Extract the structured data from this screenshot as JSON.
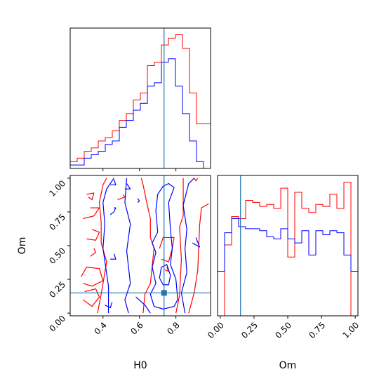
{
  "chart_data": {
    "type": "corner",
    "parameters": [
      "H0",
      "Om"
    ],
    "colors": {
      "series_a": "#ff0000",
      "series_b": "#0000ff",
      "truth": "#1f77b4"
    },
    "truth": {
      "H0": 0.735,
      "Om": 0.15
    },
    "axes": {
      "H0": {
        "label": "H0",
        "lim": [
          0.22,
          0.99
        ],
        "ticks": [
          0.4,
          0.6,
          0.8
        ],
        "tick_labels": [
          "0.4",
          "0.6",
          "0.8"
        ]
      },
      "Om": {
        "label": "Om",
        "lim": [
          -0.02,
          1.02
        ],
        "ticks": [
          0.0,
          0.25,
          0.5,
          0.75,
          1.0
        ],
        "tick_labels": [
          "0.00",
          "0.25",
          "0.50",
          "0.75",
          "1.00"
        ]
      }
    },
    "hist_H0": {
      "edges": [
        0.22,
        0.2585,
        0.297,
        0.3355,
        0.374,
        0.4125,
        0.451,
        0.4895,
        0.528,
        0.5665,
        0.605,
        0.6435,
        0.682,
        0.7205,
        0.759,
        0.7975,
        0.836,
        0.8745,
        0.913,
        0.9515,
        0.99
      ],
      "series_a": [
        2,
        3,
        5,
        6,
        8,
        9,
        11,
        14,
        16,
        20,
        22,
        30,
        31,
        36,
        38,
        39,
        35,
        22,
        13,
        13
      ],
      "series_b": [
        1,
        1,
        3,
        4,
        5,
        7,
        8,
        12,
        14,
        17,
        19,
        24,
        25,
        31,
        32,
        24,
        16,
        8,
        2,
        0
      ]
    },
    "hist_Om": {
      "edges": [
        -0.02,
        0.032,
        0.084,
        0.136,
        0.188,
        0.24,
        0.292,
        0.344,
        0.396,
        0.448,
        0.5,
        0.552,
        0.604,
        0.656,
        0.708,
        0.76,
        0.812,
        0.864,
        0.916,
        0.968,
        1.02
      ],
      "series_a": [
        0,
        17.5,
        24.5,
        24.0,
        28.5,
        28.0,
        27.0,
        27.5,
        26.5,
        31.5,
        14.5,
        30.5,
        26.5,
        25.5,
        27.5,
        27.0,
        30.0,
        26.5,
        33.0,
        0
      ],
      "series_b": [
        11,
        20.5,
        24.0,
        22.0,
        21.5,
        21.5,
        21.0,
        19.5,
        19.0,
        21.5,
        19.0,
        18.0,
        21.0,
        15.0,
        21.0,
        20.0,
        21.0,
        20.5,
        15.0,
        11.0
      ]
    },
    "contours_2d": {
      "series_a": [
        [
          [
            0.29,
            0.1
          ],
          [
            0.34,
            0.05
          ],
          [
            0.38,
            0.12
          ],
          [
            0.36,
            0.18
          ],
          [
            0.3,
            0.16
          ]
        ],
        [
          [
            0.29,
            0.22
          ],
          [
            0.34,
            0.2
          ],
          [
            0.4,
            0.24
          ],
          [
            0.38,
            0.33
          ],
          [
            0.31,
            0.34
          ],
          [
            0.28,
            0.27
          ]
        ],
        [
          [
            0.33,
            0.42
          ],
          [
            0.36,
            0.45
          ],
          [
            0.35,
            0.48
          ]
        ],
        [
          [
            0.31,
            0.55
          ],
          [
            0.36,
            0.54
          ],
          [
            0.38,
            0.6
          ],
          [
            0.34,
            0.62
          ]
        ],
        [
          [
            0.29,
            0.7
          ],
          [
            0.35,
            0.72
          ],
          [
            0.38,
            0.78
          ],
          [
            0.33,
            0.78
          ]
        ],
        [
          [
            0.31,
            0.88
          ],
          [
            0.35,
            0.89
          ],
          [
            0.34,
            0.84
          ],
          [
            0.32,
            0.86
          ]
        ],
        [
          [
            0.37,
            0.0
          ],
          [
            0.39,
            0.14
          ],
          [
            0.42,
            0.38
          ],
          [
            0.39,
            0.52
          ],
          [
            0.39,
            0.67
          ],
          [
            0.38,
            0.82
          ],
          [
            0.4,
            0.95
          ],
          [
            0.42,
            1.0
          ]
        ],
        [
          [
            0.48,
            0.84
          ],
          [
            0.52,
            0.86
          ],
          [
            0.51,
            0.88
          ]
        ],
        [
          [
            0.62,
            0.0
          ],
          [
            0.63,
            0.14
          ],
          [
            0.66,
            0.22
          ],
          [
            0.68,
            0.48
          ],
          [
            0.66,
            0.56
          ],
          [
            0.66,
            0.7
          ],
          [
            0.64,
            0.82
          ],
          [
            0.62,
            0.95
          ],
          [
            0.61,
            1.0
          ]
        ],
        [
          [
            0.72,
            0.4
          ],
          [
            0.76,
            0.38
          ],
          [
            0.78,
            0.48
          ],
          [
            0.79,
            0.56
          ],
          [
            0.73,
            0.56
          ],
          [
            0.71,
            0.48
          ]
        ],
        [
          [
            0.74,
            0.32
          ],
          [
            0.76,
            0.31
          ],
          [
            0.75,
            0.34
          ]
        ],
        [
          [
            0.8,
            0.0
          ],
          [
            0.82,
            0.13
          ],
          [
            0.83,
            0.4
          ],
          [
            0.82,
            0.64
          ],
          [
            0.84,
            0.72
          ],
          [
            0.84,
            0.9
          ],
          [
            0.84,
            1.0
          ]
        ],
        [
          [
            0.87,
            0.0
          ],
          [
            0.9,
            0.15
          ],
          [
            0.92,
            0.32
          ],
          [
            0.93,
            0.65
          ],
          [
            0.94,
            0.78
          ],
          [
            0.98,
            0.81
          ]
        ],
        [
          [
            0.9,
            1.0
          ],
          [
            0.91,
            0.98
          ],
          [
            0.92,
            1.0
          ]
        ]
      ],
      "series_b": [
        [
          [
            0.41,
            0.06
          ],
          [
            0.44,
            0.04
          ],
          [
            0.45,
            0.08
          ]
        ],
        [
          [
            0.44,
            0.4
          ],
          [
            0.47,
            0.4
          ],
          [
            0.46,
            0.44
          ]
        ],
        [
          [
            0.44,
            0.73
          ],
          [
            0.46,
            0.75
          ],
          [
            0.47,
            0.78
          ],
          [
            0.46,
            0.78
          ]
        ],
        [
          [
            0.44,
            0.95
          ],
          [
            0.47,
            0.95
          ],
          [
            0.46,
            0.99
          ]
        ],
        [
          [
            0.52,
            0.92
          ],
          [
            0.55,
            0.92
          ],
          [
            0.53,
            0.96
          ]
        ],
        [
          [
            0.59,
            0.82
          ],
          [
            0.6,
            0.83
          ],
          [
            0.59,
            0.85
          ]
        ],
        [
          [
            0.43,
            0.0
          ],
          [
            0.43,
            0.2
          ],
          [
            0.4,
            0.48
          ],
          [
            0.41,
            0.66
          ],
          [
            0.4,
            0.82
          ],
          [
            0.42,
            0.92
          ],
          [
            0.46,
            1.0
          ]
        ],
        [
          [
            0.54,
            0.0
          ],
          [
            0.52,
            0.1
          ],
          [
            0.55,
            0.22
          ],
          [
            0.53,
            0.46
          ],
          [
            0.55,
            0.66
          ],
          [
            0.52,
            0.82
          ],
          [
            0.53,
            1.0
          ]
        ],
        [
          [
            0.68,
            0.05
          ],
          [
            0.66,
            0.14
          ],
          [
            0.69,
            0.22
          ],
          [
            0.67,
            0.34
          ],
          [
            0.69,
            0.45
          ],
          [
            0.67,
            0.52
          ],
          [
            0.7,
            0.6
          ],
          [
            0.69,
            0.76
          ],
          [
            0.7,
            0.88
          ],
          [
            0.73,
            0.94
          ],
          [
            0.76,
            0.96
          ],
          [
            0.79,
            0.93
          ],
          [
            0.76,
            0.82
          ],
          [
            0.77,
            0.62
          ],
          [
            0.78,
            0.48
          ],
          [
            0.77,
            0.36
          ],
          [
            0.8,
            0.25
          ],
          [
            0.81,
            0.1
          ],
          [
            0.79,
            0.05
          ],
          [
            0.73,
            0.03
          ],
          [
            0.68,
            0.05
          ]
        ],
        [
          [
            0.71,
            0.26
          ],
          [
            0.73,
            0.21
          ],
          [
            0.76,
            0.21
          ],
          [
            0.77,
            0.28
          ],
          [
            0.75,
            0.36
          ],
          [
            0.72,
            0.34
          ],
          [
            0.71,
            0.26
          ]
        ],
        [
          [
            0.58,
            0.12
          ],
          [
            0.63,
            0.06
          ],
          [
            0.66,
            0.0
          ]
        ],
        [
          [
            0.85,
            0.0
          ],
          [
            0.83,
            0.15
          ],
          [
            0.86,
            0.3
          ],
          [
            0.85,
            0.48
          ],
          [
            0.86,
            0.62
          ],
          [
            0.84,
            0.8
          ],
          [
            0.87,
            0.96
          ],
          [
            0.9,
            1.0
          ]
        ],
        [
          [
            0.89,
            0.52
          ],
          [
            0.93,
            0.49
          ],
          [
            0.91,
            0.56
          ]
        ]
      ]
    }
  }
}
